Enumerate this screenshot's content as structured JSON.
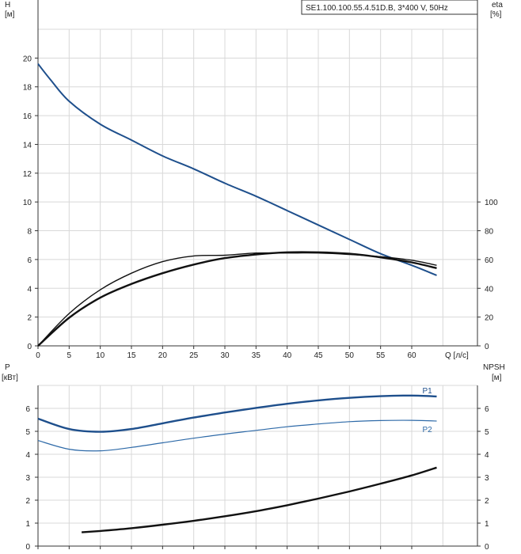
{
  "header": {
    "model_label": "SE1.100.100.55.4.51D.B, 3*400 V, 50Hz"
  },
  "chart_data": [
    {
      "type": "line",
      "panel": "upper",
      "title": "",
      "xlabel": "Q [л/с]",
      "y_left_label": [
        "H",
        "[м]"
      ],
      "y_right_label": [
        "eta",
        "[%]"
      ],
      "xlim": [
        0,
        65
      ],
      "x_ticks": [
        0,
        5,
        10,
        15,
        20,
        25,
        30,
        35,
        40,
        45,
        50,
        55,
        60
      ],
      "y_left_lim": [
        0,
        22
      ],
      "y_left_ticks": [
        0,
        2,
        4,
        6,
        8,
        10,
        12,
        14,
        16,
        18,
        20
      ],
      "y_right_lim": [
        0,
        100
      ],
      "y_right_ticks": [
        0,
        20,
        40,
        60,
        80,
        100
      ],
      "grid": true,
      "series": [
        {
          "id": "H",
          "axis": "left",
          "color": "#1e4f8c",
          "x": [
            0,
            2,
            5,
            10,
            15,
            20,
            25,
            30,
            35,
            40,
            45,
            50,
            55,
            60,
            64
          ],
          "y": [
            19.6,
            18.5,
            17.0,
            15.4,
            14.3,
            13.2,
            12.3,
            11.3,
            10.4,
            9.4,
            8.4,
            7.4,
            6.4,
            5.6,
            4.9
          ]
        },
        {
          "id": "eta_total",
          "axis": "right",
          "color": "#111111",
          "x": [
            0,
            5,
            10,
            15,
            20,
            25,
            30,
            35,
            40,
            45,
            50,
            55,
            60,
            64
          ],
          "y": [
            0,
            19.5,
            33.5,
            43,
            50.5,
            56.5,
            61,
            63.5,
            65,
            65,
            64,
            61.5,
            58,
            54
          ]
        },
        {
          "id": "eta_hydraulic",
          "axis": "right",
          "color": "#111111",
          "x": [
            0,
            5,
            10,
            15,
            20,
            25,
            30,
            35,
            40,
            45,
            50,
            55,
            60,
            64
          ],
          "y": [
            0,
            22.5,
            39,
            50.5,
            58.5,
            62.5,
            63,
            64.5,
            64.5,
            64.5,
            63.5,
            62,
            59.5,
            56
          ]
        }
      ]
    },
    {
      "type": "line",
      "panel": "lower",
      "title": "",
      "xlabel": "",
      "y_left_label": [
        "P",
        "[кВт]"
      ],
      "y_right_label": [
        "NPSH",
        "[м]"
      ],
      "xlim": [
        0,
        65
      ],
      "y_left_lim": [
        0,
        7
      ],
      "y_left_ticks": [
        0,
        1,
        2,
        3,
        4,
        5,
        6
      ],
      "y_right_lim": [
        0,
        7
      ],
      "y_right_ticks": [
        0,
        1,
        2,
        3,
        4,
        5,
        6
      ],
      "grid": true,
      "series": [
        {
          "id": "P1",
          "name": "P1",
          "axis": "left",
          "color": "#1e4f8c",
          "x": [
            0,
            5,
            10,
            15,
            20,
            25,
            30,
            35,
            40,
            45,
            50,
            55,
            60,
            64
          ],
          "y": [
            5.55,
            5.1,
            4.98,
            5.1,
            5.35,
            5.6,
            5.82,
            6.02,
            6.2,
            6.35,
            6.46,
            6.53,
            6.56,
            6.52
          ]
        },
        {
          "id": "P2",
          "name": "P2",
          "axis": "left",
          "color": "#2e6aa8",
          "x": [
            0,
            5,
            10,
            15,
            20,
            25,
            30,
            35,
            40,
            45,
            50,
            55,
            60,
            64
          ],
          "y": [
            4.6,
            4.22,
            4.15,
            4.3,
            4.5,
            4.7,
            4.88,
            5.04,
            5.2,
            5.32,
            5.42,
            5.47,
            5.48,
            5.45
          ]
        },
        {
          "id": "NPSH",
          "axis": "right",
          "color": "#111111",
          "x": [
            7,
            10,
            15,
            20,
            25,
            30,
            35,
            40,
            45,
            50,
            55,
            60,
            64
          ],
          "y": [
            0.6,
            0.66,
            0.78,
            0.93,
            1.1,
            1.3,
            1.52,
            1.78,
            2.07,
            2.38,
            2.72,
            3.08,
            3.42
          ]
        }
      ]
    }
  ]
}
